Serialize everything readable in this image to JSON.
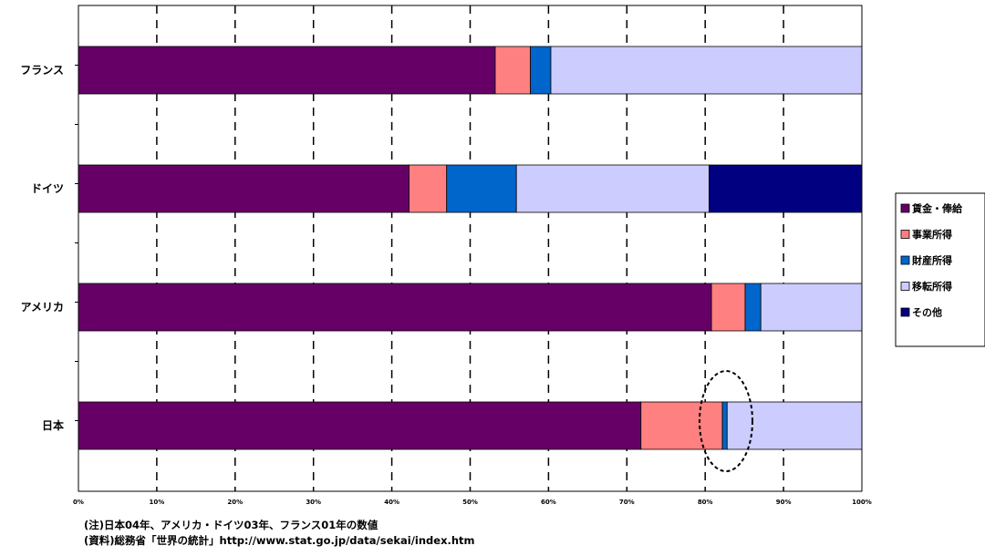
{
  "chart_data": {
    "type": "bar",
    "orientation": "horizontal",
    "stacked": true,
    "categories": [
      "フランス",
      "ドイツ",
      "アメリカ",
      "日本"
    ],
    "series": [
      {
        "name": "賃金・俸給",
        "color": "#660066",
        "values": [
          53.2,
          42.2,
          80.8,
          71.8
        ]
      },
      {
        "name": "事業所得",
        "color": "#FF8080",
        "values": [
          4.5,
          4.8,
          4.3,
          10.4
        ]
      },
      {
        "name": "財産所得",
        "color": "#0066CC",
        "values": [
          2.6,
          8.9,
          2.0,
          0.6
        ]
      },
      {
        "name": "移転所得",
        "color": "#CCCCFF",
        "values": [
          39.7,
          24.6,
          12.9,
          17.2
        ]
      },
      {
        "name": "その他",
        "color": "#000080",
        "values": [
          0,
          19.5,
          0,
          0
        ]
      }
    ],
    "x_ticks": [
      "0%",
      "10%",
      "20%",
      "30%",
      "40%",
      "50%",
      "60%",
      "70%",
      "80%",
      "90%",
      "100%"
    ],
    "xlim": [
      0,
      100
    ],
    "grid": "vertical dashed",
    "legend_position": "right",
    "annotation": "dashed ellipse around 日本 財産所得 segment"
  },
  "notes": {
    "line1": "(注)日本04年、アメリカ・ドイツ03年、フランス01年の数値",
    "line2": "(資料)総務省「世界の統計」http://www.stat.go.jp/data/sekai/index.htm"
  }
}
